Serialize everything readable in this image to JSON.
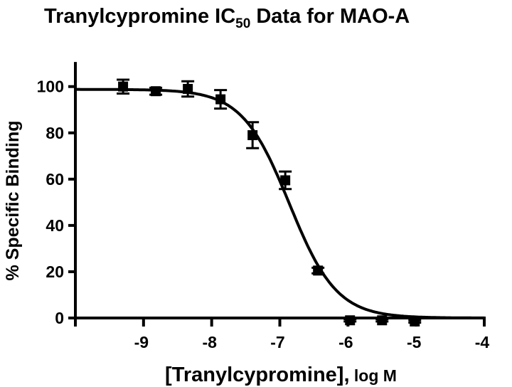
{
  "chart_data": {
    "type": "scatter",
    "title": "Tranylcypromine IC",
    "title_subscript": "50",
    "title_suffix": " Data for MAO-A",
    "xlabel": "[Tranylcypromine],",
    "xlabel_unit": " log M",
    "ylabel": "% Specific Binding",
    "xlim": [
      -10,
      -4
    ],
    "ylim": [
      0,
      110
    ],
    "xticks": [
      -9,
      -8,
      -7,
      -6,
      -5,
      -4
    ],
    "xtick_labels": [
      "-9",
      "-8",
      "-7",
      "-6",
      "-5",
      "-4"
    ],
    "yticks": [
      0,
      20,
      40,
      60,
      80,
      100
    ],
    "ytick_labels": [
      "0",
      "20",
      "40",
      "60",
      "80",
      "100"
    ],
    "grid": false,
    "series": [
      {
        "name": "MAO-A",
        "x": [
          -9.3,
          -8.82,
          -8.35,
          -7.87,
          -7.4,
          -6.92,
          -6.44,
          -5.97,
          -5.5,
          -5.02
        ],
        "y": [
          100,
          98,
          99,
          94.5,
          79,
          59.5,
          20.5,
          -1,
          -1,
          -1.5
        ],
        "error": [
          3,
          1.5,
          3.3,
          4,
          5.6,
          3.8,
          1.2,
          0.5,
          0.5,
          0.5
        ]
      }
    ],
    "fit": {
      "model": "sigmoidal dose-response",
      "top": 98.8,
      "bottom": 0,
      "logIC50": -6.86,
      "hill_slope": -1.25
    }
  }
}
